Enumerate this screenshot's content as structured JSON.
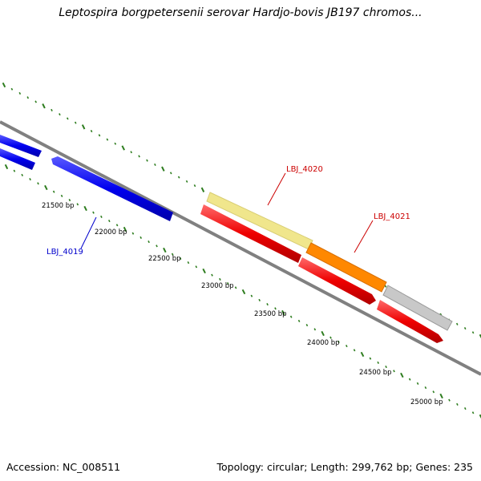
{
  "title": "Leptospira borgpetersenii serovar Hardjo-bovis JB197 chromos...",
  "footer": {
    "accession": "Accession: NC_008511",
    "topology": "Topology: circular; Length: 299,762 bp; Genes: 235"
  },
  "scale_labels": [
    "21500 bp",
    "22000 bp",
    "22500 bp",
    "23000 bp",
    "23500 bp",
    "24000 bp",
    "24500 bp",
    "25000 bp"
  ],
  "gene_labels": [
    {
      "text": "LBJ_4019",
      "color": "#0000cc"
    },
    {
      "text": "LBJ_4020",
      "color": "#cc0000"
    },
    {
      "text": "LBJ_4021",
      "color": "#cc0000"
    }
  ],
  "colors": {
    "backbone": "#808080",
    "tick": "#2e7d1f",
    "blue_gene": "#0000ee",
    "red_gene": "#ee0000",
    "orange_gene": "#ff8800",
    "pale_gene": "#f0e68c",
    "gray_gene": "#c0c0c0"
  }
}
